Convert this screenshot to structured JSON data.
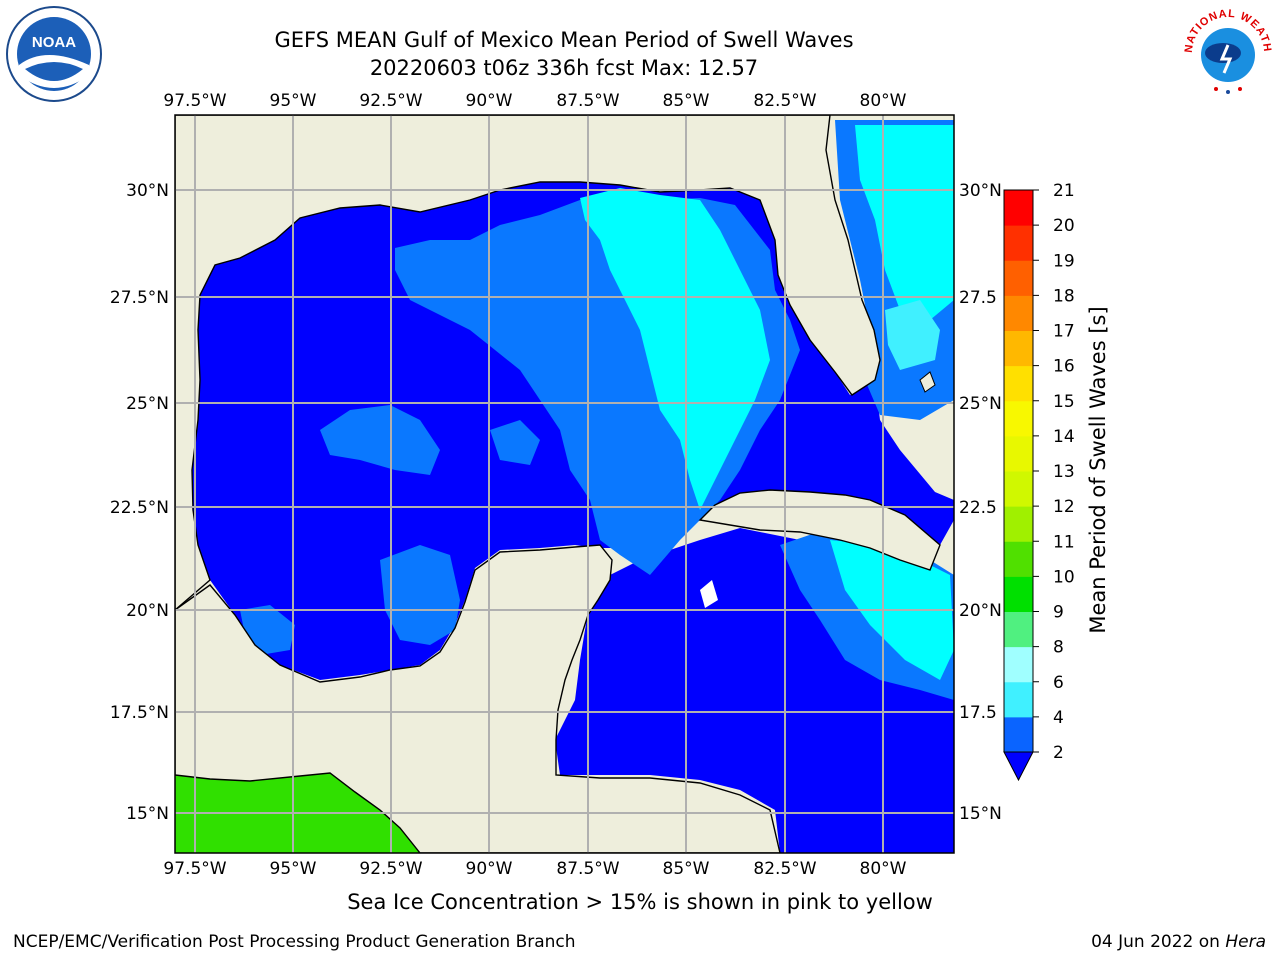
{
  "title_line1": "GEFS MEAN Gulf of Mexico Mean Period of Swell Waves",
  "title_line2": "20220603 t06z 336h fcst   Max: 12.57",
  "top_lon_labels": [
    "97.5°W",
    "95°W",
    "92.5°W",
    "90°W",
    "87.5°W",
    "85°W",
    "82.5°W",
    "80°W"
  ],
  "bottom_lon_labels": [
    "97.5°W",
    "95°W",
    "92.5°W",
    "90°W",
    "87.5°W",
    "85°W",
    "82.5°W",
    "80°W"
  ],
  "left_lat_labels": [
    "30°N",
    "27.5°N",
    "25°N",
    "22.5°N",
    "20°N",
    "17.5°N",
    "15°N"
  ],
  "right_lat_labels": [
    "30°N",
    "27.5",
    "25°N",
    "22.5",
    "20°N",
    "17.5",
    "15°N"
  ],
  "colorbar": {
    "label": "Mean Period of Swell Waves [s]",
    "ticks": [
      "2",
      "4",
      "6",
      "8",
      "9",
      "10",
      "11",
      "12",
      "13",
      "14",
      "15",
      "16",
      "17",
      "18",
      "19",
      "20",
      "21"
    ],
    "colors": [
      "#0a64ff",
      "#00e0ff",
      "#40f0ff",
      "#a0ffff",
      "#50f080",
      "#00e000",
      "#50e000",
      "#a0f000",
      "#d0f800",
      "#e8f800",
      "#f8f800",
      "#ffe000",
      "#ffb800",
      "#ff8800",
      "#ff6000",
      "#ff3000",
      "#ff0000"
    ],
    "extend_color": "#0000ff"
  },
  "field_colors": {
    "land": "#eeeedc",
    "deep_blue": "#0000ff",
    "mid_blue": "#0a78ff",
    "cyan": "#00ffff",
    "light_cyan": "#40f0ff",
    "green": "#30e000"
  },
  "note": "Sea Ice Concentration > 15% is shown in pink to yellow",
  "footer_left": "NCEP/EMC/Verification Post Processing Product Generation Branch",
  "footer_right_date": "04 Jun 2022 on",
  "footer_right_host": "Hera",
  "noaa_logo_text": "NOAA",
  "nws_logo_text": "NATIONAL WEATHER SERVICE"
}
